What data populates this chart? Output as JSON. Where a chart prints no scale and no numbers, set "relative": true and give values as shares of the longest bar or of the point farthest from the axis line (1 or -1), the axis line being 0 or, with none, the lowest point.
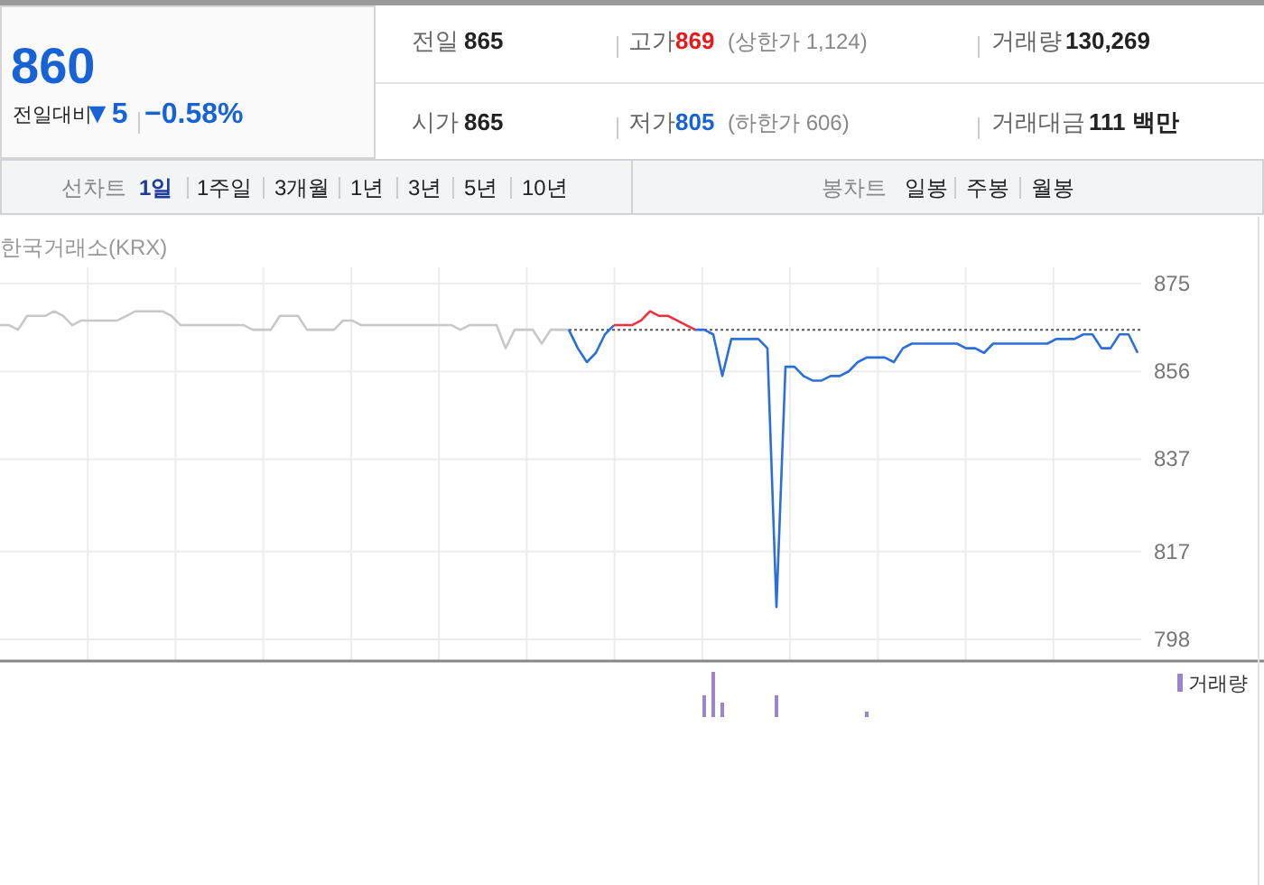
{
  "chart_data": [
    {
      "type": "other",
      "annotations": [
        "860",
        "전일대비",
        "▼5",
        "−0.58%",
        "전일",
        "865",
        "고가",
        "869",
        "(상한가 1,124)",
        "거래량",
        "130,269",
        "시가",
        "865",
        "저가",
        "805",
        "(하한가 606)",
        "거래대금",
        "111 백만",
        "선차트",
        "1일",
        "1주일",
        "3개월",
        "1년",
        "3년",
        "5년",
        "10년",
        "봉차트",
        "일봉",
        "주봉",
        "월봉"
      ]
    },
    {
      "type": "line",
      "title": "한국거래소(KRX)",
      "ylim": [
        798,
        875
      ],
      "yticks": [
        798,
        817,
        837,
        856,
        875
      ],
      "grid": true,
      "categories": [
        null,
        null,
        null,
        null,
        null,
        null,
        null,
        null,
        null,
        null,
        null,
        null,
        null,
        null,
        null,
        null,
        null,
        null,
        null,
        null,
        null,
        null,
        null,
        null,
        null,
        null,
        null,
        null,
        null,
        null,
        null,
        null,
        null,
        null,
        null,
        null,
        null,
        null,
        null,
        null,
        null,
        null,
        null,
        null,
        null,
        null,
        null,
        null,
        null,
        null,
        null,
        null,
        null,
        null,
        null,
        null,
        null,
        null,
        null,
        null,
        null,
        null,
        null,
        null,
        null,
        null,
        null,
        null,
        null,
        null,
        null,
        null,
        null,
        null,
        null,
        null,
        null,
        null,
        null,
        null,
        null,
        null,
        null,
        null,
        null,
        null,
        null,
        null,
        null,
        null,
        null,
        null,
        null,
        null,
        null,
        null,
        null,
        null,
        null,
        null,
        null,
        null,
        null,
        null,
        null,
        null,
        null,
        null,
        null,
        null,
        null,
        null,
        null,
        null,
        null,
        null,
        null,
        null,
        null,
        null,
        null,
        null,
        null,
        null,
        null,
        null,
        null
      ],
      "ref_lines": [
        {
          "axis": "y",
          "value": 865,
          "color": "#555555",
          "line_style": "dotted"
        }
      ],
      "series": [
        {
          "color": "#c8c8c8",
          "values": [
            866,
            866,
            865,
            868,
            868,
            868,
            869,
            868,
            866,
            867,
            867,
            867,
            867,
            867,
            868,
            869,
            869,
            869,
            869,
            868,
            866,
            866,
            866,
            866,
            866,
            866,
            866,
            866,
            865,
            865,
            865,
            868,
            868,
            868,
            865,
            865,
            865,
            865,
            867,
            867,
            866,
            866,
            866,
            866,
            866,
            866,
            866,
            866,
            866,
            866,
            866,
            865,
            866,
            866,
            866,
            866,
            861,
            865,
            865,
            865,
            862,
            865,
            865,
            865,
            null,
            null,
            null,
            null,
            null,
            null,
            null,
            null,
            null,
            null,
            null,
            null,
            null,
            null,
            null,
            null,
            null,
            null,
            null,
            null,
            null,
            null,
            null,
            null,
            null,
            null,
            null,
            null,
            null,
            null,
            null,
            null,
            null,
            null,
            null,
            null,
            null,
            null,
            null,
            null,
            null,
            null,
            null,
            null,
            null,
            null,
            null,
            null,
            null,
            null,
            null,
            null,
            null,
            null,
            null,
            null,
            null,
            null,
            null,
            null,
            null,
            null,
            null
          ]
        },
        {
          "color": "#2c6fd8",
          "values": [
            null,
            null,
            null,
            null,
            null,
            null,
            null,
            null,
            null,
            null,
            null,
            null,
            null,
            null,
            null,
            null,
            null,
            null,
            null,
            null,
            null,
            null,
            null,
            null,
            null,
            null,
            null,
            null,
            null,
            null,
            null,
            null,
            null,
            null,
            null,
            null,
            null,
            null,
            null,
            null,
            null,
            null,
            null,
            null,
            null,
            null,
            null,
            null,
            null,
            null,
            null,
            null,
            null,
            null,
            null,
            null,
            null,
            null,
            null,
            null,
            null,
            null,
            null,
            865,
            861,
            858,
            860,
            864,
            866,
            null,
            null,
            null,
            null,
            null,
            null,
            null,
            null,
            865,
            865,
            864,
            855,
            863,
            863,
            863,
            863,
            861,
            805,
            857,
            857,
            855,
            854,
            854,
            855,
            855,
            856,
            858,
            859,
            859,
            859,
            858,
            861,
            862,
            862,
            862,
            862,
            862,
            862,
            861,
            861,
            860,
            862,
            862,
            862,
            862,
            862,
            862,
            862,
            863,
            863,
            863,
            864,
            864,
            861,
            861,
            864,
            864,
            860
          ]
        },
        {
          "color": "#f0303a",
          "values": [
            null,
            null,
            null,
            null,
            null,
            null,
            null,
            null,
            null,
            null,
            null,
            null,
            null,
            null,
            null,
            null,
            null,
            null,
            null,
            null,
            null,
            null,
            null,
            null,
            null,
            null,
            null,
            null,
            null,
            null,
            null,
            null,
            null,
            null,
            null,
            null,
            null,
            null,
            null,
            null,
            null,
            null,
            null,
            null,
            null,
            null,
            null,
            null,
            null,
            null,
            null,
            null,
            null,
            null,
            null,
            null,
            null,
            null,
            null,
            null,
            null,
            null,
            null,
            null,
            null,
            null,
            null,
            null,
            866,
            866,
            866,
            867,
            869,
            868,
            868,
            867,
            866,
            865,
            null,
            null,
            null,
            null,
            null,
            null,
            null,
            null,
            null,
            null,
            null,
            null,
            null,
            null,
            null,
            null,
            null,
            null,
            null,
            null,
            null,
            null,
            null,
            null,
            null,
            null,
            null,
            null,
            null,
            null,
            null,
            null,
            null,
            null,
            null,
            null,
            null,
            null,
            null,
            null,
            null,
            null,
            null,
            null,
            null,
            null,
            null,
            null,
            null
          ]
        }
      ]
    },
    {
      "type": "bar",
      "relative": true,
      "legend": "top right",
      "categories": [
        null,
        null,
        null,
        null,
        null,
        null,
        null,
        null,
        null,
        null,
        null,
        null,
        null,
        null,
        null,
        null,
        null,
        null,
        null,
        null,
        null,
        null,
        null,
        null,
        null,
        null,
        null,
        null,
        null,
        null,
        null,
        null,
        null,
        null,
        null,
        null,
        null,
        null,
        null,
        null,
        null,
        null,
        null,
        null,
        null,
        null,
        null,
        null,
        null,
        null,
        null,
        null,
        null,
        null,
        null,
        null,
        null,
        null,
        null,
        null,
        null,
        null,
        null,
        null,
        null,
        null,
        null,
        null,
        null,
        null,
        null,
        null,
        null,
        null,
        null,
        null,
        null,
        null,
        null,
        null,
        null,
        null,
        null,
        null,
        null,
        null,
        null,
        null,
        null,
        null,
        null,
        null,
        null,
        null,
        null,
        null,
        null,
        null,
        null,
        null,
        null,
        null,
        null,
        null,
        null,
        null,
        null,
        null,
        null,
        null,
        null,
        null,
        null,
        null,
        null,
        null,
        null,
        null,
        null,
        null,
        null,
        null,
        null,
        null,
        null,
        null,
        null
      ],
      "series": [
        {
          "name": "거래량",
          "color": "#9b86cc",
          "values": [
            null,
            null,
            null,
            null,
            null,
            null,
            null,
            null,
            null,
            null,
            null,
            null,
            null,
            null,
            null,
            null,
            null,
            null,
            null,
            null,
            null,
            null,
            null,
            null,
            null,
            null,
            null,
            null,
            null,
            null,
            null,
            null,
            null,
            null,
            null,
            null,
            null,
            null,
            null,
            null,
            null,
            null,
            null,
            null,
            null,
            null,
            null,
            null,
            null,
            null,
            null,
            null,
            null,
            null,
            null,
            null,
            null,
            null,
            null,
            null,
            null,
            null,
            null,
            null,
            null,
            null,
            null,
            null,
            null,
            null,
            null,
            null,
            null,
            null,
            null,
            null,
            null,
            null,
            0.48,
            1,
            0.32,
            null,
            null,
            null,
            null,
            null,
            0.48,
            null,
            null,
            null,
            null,
            null,
            null,
            null,
            null,
            null,
            0.12,
            null,
            null,
            null,
            null,
            null,
            null,
            null,
            null,
            null,
            null,
            null,
            null,
            null,
            null,
            null,
            null,
            null,
            null,
            null,
            null,
            null,
            null,
            null,
            null,
            null,
            null,
            null,
            null,
            null,
            null
          ]
        }
      ]
    }
  ]
}
